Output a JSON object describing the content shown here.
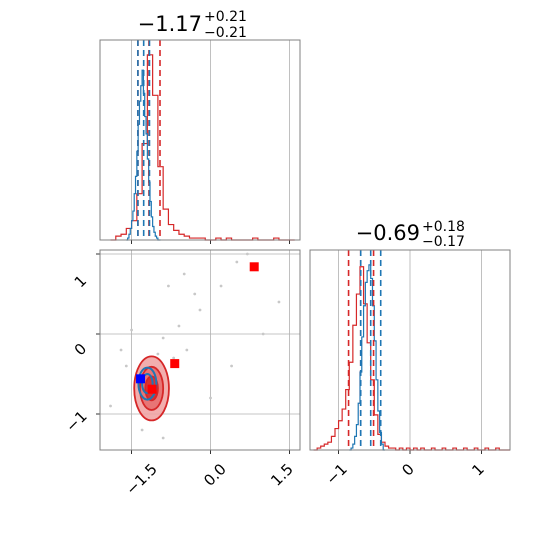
{
  "chart_data": {
    "type": "corner",
    "colors": {
      "series_a": "#d62728",
      "series_b": "#1f77b4",
      "scatter": "#c8c8c8",
      "grid": "#b0b0b0"
    },
    "panels": [
      {
        "id": "hist-param-1",
        "type": "histogram",
        "title": {
          "value": "−1.17",
          "upper": "+0.21",
          "lower": "−0.21"
        },
        "xlim": [
          -2.1,
          1.7
        ],
        "grid": true,
        "series_a": {
          "bin_width": 0.1,
          "bin_centers": [
            -1.85,
            -1.75,
            -1.65,
            -1.55,
            -1.45,
            -1.35,
            -1.25,
            -1.15,
            -1.05,
            -0.95,
            -0.85,
            -0.75,
            -0.65,
            -0.55,
            -0.45,
            -0.35,
            -0.25,
            -0.15,
            -0.05,
            0.05,
            0.15,
            0.25,
            0.35,
            0.45,
            0.55,
            0.65,
            0.75,
            0.85,
            0.95,
            1.05,
            1.15,
            1.25,
            1.35,
            1.45,
            1.55
          ],
          "counts": [
            0,
            2,
            3,
            6,
            10,
            24,
            50,
            96,
            75,
            38,
            16,
            8,
            5,
            3,
            2,
            1,
            1,
            1,
            0,
            0,
            1,
            0,
            1,
            0,
            0,
            0,
            0,
            1,
            0,
            0,
            0,
            1,
            0,
            0,
            0
          ],
          "quantiles": [
            -1.38,
            -1.17,
            -0.96
          ]
        },
        "series_b": {
          "bin_width": 0.025,
          "bin_centers": [
            -1.5875,
            -1.5625,
            -1.5375,
            -1.5125,
            -1.4875,
            -1.4625,
            -1.4375,
            -1.4125,
            -1.3875,
            -1.3625,
            -1.3375,
            -1.3125,
            -1.2875,
            -1.2625,
            -1.2375,
            -1.2125,
            -1.1875,
            -1.1625,
            -1.1375,
            -1.1125,
            -1.0875,
            -1.0625,
            -1.0375,
            -1.0125,
            -0.9875,
            -0.9625
          ],
          "counts": [
            0,
            1,
            3,
            6,
            10,
            15,
            24,
            33,
            46,
            60,
            72,
            80,
            88,
            76,
            64,
            55,
            42,
            30,
            20,
            12,
            7,
            4,
            2,
            1,
            0,
            0
          ],
          "quantiles": [
            -1.38,
            -1.27,
            -1.16
          ]
        }
      },
      {
        "id": "hist-param-2",
        "type": "histogram",
        "title": {
          "value": "−0.69",
          "upper": "+0.18",
          "lower": "−0.17"
        },
        "xlim": [
          -1.4,
          1.4
        ],
        "grid": true,
        "series_a": {
          "bin_width": 0.05,
          "bin_centers": [
            -1.325,
            -1.275,
            -1.225,
            -1.175,
            -1.125,
            -1.075,
            -1.025,
            -0.975,
            -0.925,
            -0.875,
            -0.825,
            -0.775,
            -0.725,
            -0.675,
            -0.625,
            -0.575,
            -0.525,
            -0.475,
            -0.425,
            -0.375,
            -0.325,
            -0.275,
            -0.225,
            -0.175,
            -0.125,
            -0.075,
            -0.025,
            0.025,
            0.075,
            0.125,
            0.175,
            0.225,
            0.275,
            0.325,
            0.375,
            0.425,
            0.475,
            0.525,
            0.575,
            0.625,
            0.675,
            0.725,
            0.775,
            0.825,
            0.875,
            0.925,
            0.975,
            1.025,
            1.075,
            1.125,
            1.175,
            1.225,
            1.275,
            1.325,
            1.375
          ],
          "counts": [
            0,
            1,
            2,
            3,
            4,
            7,
            11,
            15,
            21,
            31,
            45,
            64,
            80,
            94,
            75,
            55,
            36,
            18,
            8,
            4,
            2,
            1,
            1,
            0,
            1,
            0,
            1,
            0,
            1,
            0,
            1,
            0,
            0,
            1,
            0,
            0,
            1,
            0,
            0,
            1,
            0,
            0,
            1,
            0,
            0,
            1,
            0,
            0,
            1,
            0,
            0,
            1,
            0,
            0,
            0
          ],
          "quantiles": [
            -0.86,
            -0.69,
            -0.51
          ]
        },
        "series_b": {
          "bin_width": 0.025,
          "bin_centers": [
            -0.8375,
            -0.8125,
            -0.7875,
            -0.7625,
            -0.7375,
            -0.7125,
            -0.6875,
            -0.6625,
            -0.6375,
            -0.6125,
            -0.5875,
            -0.5625,
            -0.5375,
            -0.5125,
            -0.4875,
            -0.4625,
            -0.4375,
            -0.4125,
            -0.3875,
            -0.3625
          ],
          "counts": [
            0,
            1,
            3,
            7,
            13,
            24,
            40,
            58,
            74,
            86,
            92,
            95,
            88,
            74,
            56,
            36,
            20,
            9,
            3,
            0
          ],
          "quantiles": [
            -0.69,
            -0.55,
            -0.41
          ]
        }
      },
      {
        "id": "joint-param-1-2",
        "type": "contour-scatter",
        "xlim": [
          -2.1,
          1.7
        ],
        "ylim": [
          -1.45,
          1.05
        ],
        "grid": true,
        "series_a": {
          "center": [
            -1.12,
            -0.68
          ],
          "contour_radii": [
            [
              0.33,
              0.4
            ],
            [
              0.22,
              0.27
            ],
            [
              0.12,
              0.15
            ]
          ],
          "markers": [
            [
              -0.68,
              -0.37
            ],
            [
              0.83,
              0.84
            ],
            [
              -1.11,
              -0.69
            ]
          ]
        },
        "series_b": {
          "center": [
            -1.2,
            -0.62
          ],
          "contour_radii": [
            [
              0.17,
              0.2
            ],
            [
              0.1,
              0.12
            ]
          ],
          "markers": [
            [
              -1.33,
              -0.56
            ]
          ]
        },
        "outliers": [
          [
            -1.7,
            -0.2
          ],
          [
            -1.6,
            -0.4
          ],
          [
            -1.5,
            0.05
          ],
          [
            -1.0,
            -0.25
          ],
          [
            -0.9,
            -0.05
          ],
          [
            -0.7,
            -0.3
          ],
          [
            -0.6,
            0.1
          ],
          [
            -0.45,
            -0.2
          ],
          [
            -0.3,
            0.5
          ],
          [
            -0.2,
            0.3
          ],
          [
            0.2,
            0.6
          ],
          [
            0.5,
            0.9
          ],
          [
            0.7,
            1.0
          ],
          [
            1.3,
            0.4
          ],
          [
            -0.8,
            0.6
          ],
          [
            -1.3,
            -1.2
          ],
          [
            -0.9,
            -1.3
          ],
          [
            0.0,
            -0.8
          ],
          [
            0.4,
            -0.4
          ],
          [
            -0.5,
            0.75
          ],
          [
            1.0,
            0.0
          ],
          [
            -1.9,
            -0.9
          ]
        ]
      }
    ],
    "axes": {
      "x_ticks": [
        -1.5,
        0.0,
        1.5
      ],
      "x_tick_labels": [
        "−1.5",
        "0.0",
        "1.5"
      ],
      "y_ticks": [
        1,
        0,
        -1
      ],
      "y_tick_labels": [
        "1",
        "0",
        "−1"
      ],
      "x2_ticks": [
        -1,
        0,
        1
      ],
      "x2_tick_labels": [
        "−1",
        "0",
        "1"
      ]
    }
  }
}
